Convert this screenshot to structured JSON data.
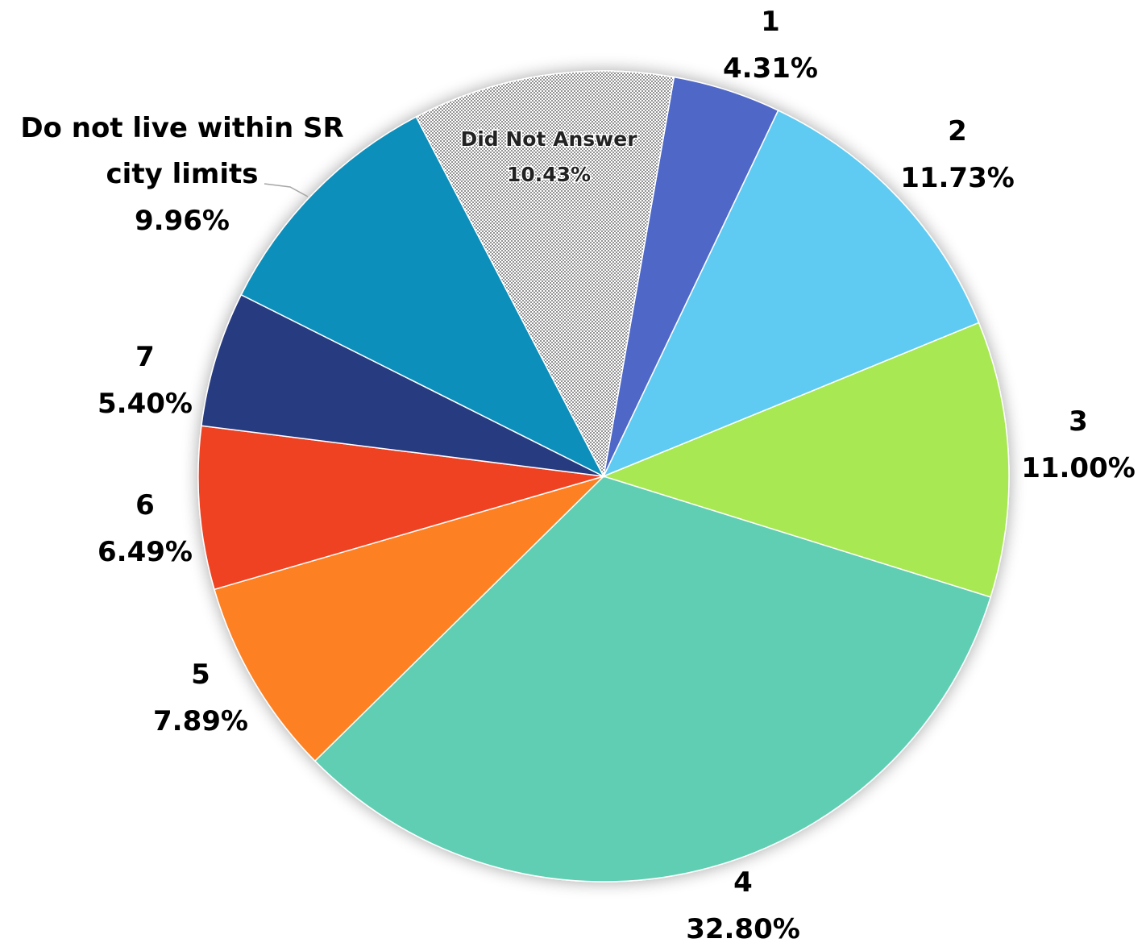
{
  "chart_data": {
    "type": "pie",
    "title": "",
    "slices": [
      {
        "label": "1",
        "value": 4.31,
        "display": "4.31%",
        "color": "#5068C8"
      },
      {
        "label": "2",
        "value": 11.73,
        "display": "11.73%",
        "color": "#5ECBF2"
      },
      {
        "label": "3",
        "value": 11.0,
        "display": "11.00%",
        "color": "#A8E852"
      },
      {
        "label": "4",
        "value": 32.8,
        "display": "32.80%",
        "color": "#5ECEB2"
      },
      {
        "label": "5",
        "value": 7.89,
        "display": "7.89%",
        "color": "#FD8023"
      },
      {
        "label": "6",
        "value": 6.49,
        "display": "6.49%",
        "color": "#EF4224"
      },
      {
        "label": "7",
        "value": 5.4,
        "display": "5.40%",
        "color": "#283A80"
      },
      {
        "label": "Do not live within SR city limits",
        "value": 9.96,
        "display": "9.96%",
        "color": "#118FBC"
      },
      {
        "label": "Did Not Answer",
        "value": 10.43,
        "display": "10.43%",
        "color": "dotted-gray"
      }
    ],
    "start_angle_deg": 10,
    "direction": "clockwise",
    "labels": {
      "s1": {
        "name": "1",
        "pct": "4.31%"
      },
      "s2": {
        "name": "2",
        "pct": "11.73%"
      },
      "s3": {
        "name": "3",
        "pct": "11.00%"
      },
      "s4": {
        "name": "4",
        "pct": "32.80%"
      },
      "s5": {
        "name": "5",
        "pct": "7.89%"
      },
      "s6": {
        "name": "6",
        "pct": "6.49%"
      },
      "s7": {
        "name": "7",
        "pct": "5.40%"
      },
      "s8": {
        "name_line1": "Do not live within SR",
        "name_line2": "city limits",
        "pct": "9.96%"
      },
      "s9": {
        "name": "Did Not Answer",
        "pct": "10.43%"
      }
    }
  }
}
